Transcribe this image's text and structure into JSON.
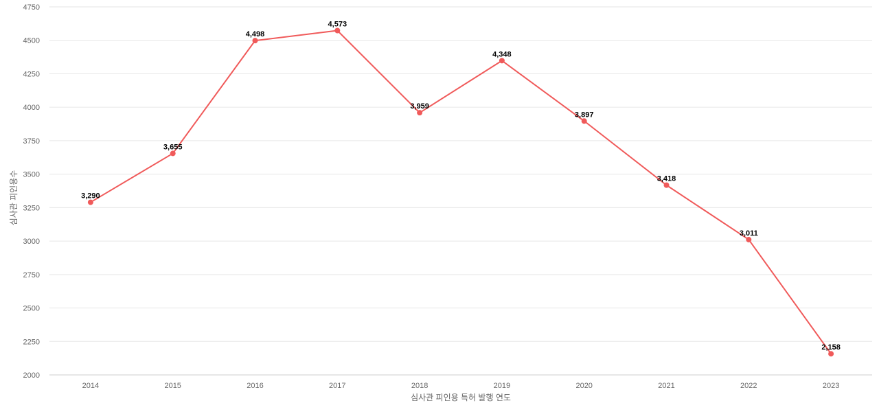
{
  "chart_data": {
    "type": "line",
    "title": "",
    "xlabel": "심사관 피인용 특허 발행 연도",
    "ylabel": "심사관 피인용수",
    "categories": [
      "2014",
      "2015",
      "2016",
      "2017",
      "2018",
      "2019",
      "2020",
      "2021",
      "2022",
      "2023"
    ],
    "series": [
      {
        "values": [
          3290,
          3655,
          4498,
          4573,
          3959,
          4348,
          3897,
          3418,
          3011,
          2158
        ],
        "labels": [
          "3,290",
          "3,655",
          "4,498",
          "4,573",
          "3,959",
          "4,348",
          "3,897",
          "3,418",
          "3,011",
          "2,158"
        ],
        "color": "#f05a5a"
      }
    ],
    "ylim": [
      2000,
      4750
    ],
    "yticks": [
      "2000",
      "2250",
      "2500",
      "2750",
      "3000",
      "3250",
      "3500",
      "3750",
      "4000",
      "4250",
      "4500",
      "4750"
    ],
    "grid": true,
    "legend": "none",
    "colors": {
      "grid": "#e6e6e6",
      "axis": "#cccccc",
      "line": "#f05a5a"
    }
  }
}
